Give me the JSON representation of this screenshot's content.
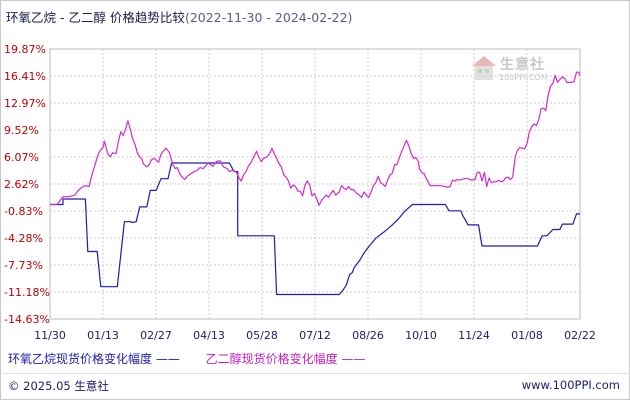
{
  "title": "环氧乙烷 - 乙二醇 价格趋势比较",
  "date_range": "(2022-11-30 - 2024-02-22)",
  "legend": {
    "series1_label": "环氧乙烷现货价格变化幅度",
    "series2_label": "乙二醇现货价格变化幅度"
  },
  "footer": {
    "copyright": "© 2025.05 生意社",
    "url": "www.100PPI.com"
  },
  "watermark": {
    "text": "生意社",
    "url": "100PPI.COM"
  },
  "colors": {
    "series1": "#1c1cb0",
    "series2": "#d22ad2",
    "grid": "#cfcfcf"
  },
  "chart_data": {
    "type": "line",
    "ylim": [
      -14.63,
      19.87
    ],
    "ytick_labels": [
      "19.87%",
      "16.41%",
      "12.97%",
      "9.52%",
      "6.07%",
      "2.62%",
      "-0.83%",
      "-4.28%",
      "-7.73%",
      "-11.18%",
      "-14.63%"
    ],
    "x_tick_labels": [
      "11/30",
      "01/13",
      "02/27",
      "04/13",
      "05/28",
      "07/12",
      "08/26",
      "10/10",
      "11/24",
      "01/08",
      "02/22"
    ],
    "x_range_days": [
      0,
      449
    ],
    "grid": true,
    "series": [
      {
        "name": "环氧乙烷现货价格变化幅度",
        "points": [
          [
            0,
            0
          ],
          [
            5,
            0
          ],
          [
            11,
            0
          ],
          [
            11,
            0.7
          ],
          [
            20,
            0.7
          ],
          [
            30,
            0.7
          ],
          [
            32,
            -6
          ],
          [
            40,
            -6
          ],
          [
            43,
            -10.5
          ],
          [
            57,
            -10.5
          ],
          [
            63,
            -2.2
          ],
          [
            68,
            -2.2
          ],
          [
            70,
            -2.3
          ],
          [
            73,
            -2.2
          ],
          [
            76,
            -0.3
          ],
          [
            82,
            -0.3
          ],
          [
            85,
            1.8
          ],
          [
            90,
            1.8
          ],
          [
            94,
            3.3
          ],
          [
            100,
            3.3
          ],
          [
            103,
            5.3
          ],
          [
            135,
            5.3
          ],
          [
            140,
            5.3
          ],
          [
            152,
            5.3
          ],
          [
            156,
            4.2
          ],
          [
            159,
            4.2
          ],
          [
            159,
            -4
          ],
          [
            185,
            -4
          ],
          [
            190,
            -4
          ],
          [
            192,
            -11.5
          ],
          [
            225,
            -11.5
          ],
          [
            245,
            -11.5
          ],
          [
            248,
            -11
          ],
          [
            251,
            -10.3
          ],
          [
            254,
            -8.9
          ],
          [
            256,
            -8.7
          ],
          [
            258,
            -8
          ],
          [
            262,
            -7.2
          ],
          [
            266,
            -6.2
          ],
          [
            271,
            -5.2
          ],
          [
            276,
            -4.3
          ],
          [
            283,
            -3.5
          ],
          [
            290,
            -2.6
          ],
          [
            296,
            -1.7
          ],
          [
            301,
            -0.8
          ],
          [
            307,
            0
          ],
          [
            327,
            0
          ],
          [
            335,
            0
          ],
          [
            338,
            -0.8
          ],
          [
            348,
            -0.8
          ],
          [
            350,
            -1.5
          ],
          [
            352,
            -2
          ],
          [
            354,
            -2.6
          ],
          [
            356,
            -2.6
          ],
          [
            363,
            -2.6
          ],
          [
            366,
            -5.3
          ],
          [
            378,
            -5.3
          ],
          [
            410,
            -5.3
          ],
          [
            413,
            -5.3
          ],
          [
            417,
            -4
          ],
          [
            421,
            -4
          ],
          [
            426,
            -3.2
          ],
          [
            432,
            -3.2
          ],
          [
            434,
            -2.5
          ],
          [
            437,
            -2.5
          ],
          [
            443,
            -2.5
          ],
          [
            446,
            -1.2
          ],
          [
            449,
            -1.2
          ]
        ]
      },
      {
        "name": "乙二醇现货价格变化幅度",
        "points": [
          [
            0,
            0
          ],
          [
            6,
            0
          ],
          [
            8,
            0.4
          ],
          [
            11,
            1
          ],
          [
            16,
            1
          ],
          [
            21,
            1.2
          ],
          [
            24,
            1.8
          ],
          [
            27,
            2.2
          ],
          [
            30,
            2.4
          ],
          [
            33,
            2.3
          ],
          [
            35,
            3.5
          ],
          [
            37,
            4.5
          ],
          [
            39,
            5.5
          ],
          [
            41,
            6.5
          ],
          [
            43,
            7
          ],
          [
            45,
            7.3
          ],
          [
            46,
            8.1
          ],
          [
            49,
            6.5
          ],
          [
            51,
            6.1
          ],
          [
            53,
            6.6
          ],
          [
            56,
            6.5
          ],
          [
            58,
            8.1
          ],
          [
            60,
            9.3
          ],
          [
            62,
            8.8
          ],
          [
            64,
            9.6
          ],
          [
            66,
            10.7
          ],
          [
            68,
            9.6
          ],
          [
            70,
            8.4
          ],
          [
            72,
            7.7
          ],
          [
            74,
            6.6
          ],
          [
            76,
            6.1
          ],
          [
            78,
            5.8
          ],
          [
            79,
            5.2
          ],
          [
            82,
            4.8
          ],
          [
            84,
            5.1
          ],
          [
            86,
            5.7
          ],
          [
            88,
            5.9
          ],
          [
            92,
            5.4
          ],
          [
            94,
            6.4
          ],
          [
            96,
            6.8
          ],
          [
            98,
            7.2
          ],
          [
            101,
            6.7
          ],
          [
            104,
            5.1
          ],
          [
            106,
            4.6
          ],
          [
            108,
            4.7
          ],
          [
            110,
            3.9
          ],
          [
            112,
            3.5
          ],
          [
            114,
            3.2
          ],
          [
            117,
            3.7
          ],
          [
            119,
            3.9
          ],
          [
            122,
            4.2
          ],
          [
            124,
            4.3
          ],
          [
            127,
            4.7
          ],
          [
            130,
            4.6
          ],
          [
            134,
            5.3
          ],
          [
            138,
            4.9
          ],
          [
            141,
            5.5
          ],
          [
            144,
            5.6
          ],
          [
            147,
            4.8
          ],
          [
            150,
            4.6
          ],
          [
            152,
            4.2
          ],
          [
            155,
            4.4
          ],
          [
            158,
            4.1
          ],
          [
            160,
            3.4
          ],
          [
            162,
            3
          ],
          [
            164,
            3.8
          ],
          [
            166,
            4.2
          ],
          [
            168,
            4.9
          ],
          [
            170,
            5.3
          ],
          [
            173,
            6.2
          ],
          [
            175,
            6.8
          ],
          [
            177,
            6
          ],
          [
            179,
            5.5
          ],
          [
            181,
            5.9
          ],
          [
            184,
            6.1
          ],
          [
            186,
            6.5
          ],
          [
            188,
            7.2
          ],
          [
            190,
            6.5
          ],
          [
            192,
            5.9
          ],
          [
            194,
            5.2
          ],
          [
            196,
            4.8
          ],
          [
            198,
            3.8
          ],
          [
            200,
            3.5
          ],
          [
            202,
            3
          ],
          [
            204,
            2.1
          ],
          [
            206,
            2.5
          ],
          [
            208,
            2.3
          ],
          [
            210,
            1.7
          ],
          [
            212,
            1.7
          ],
          [
            214,
            1.1
          ],
          [
            216,
            2.5
          ],
          [
            218,
            3
          ],
          [
            220,
            2.5
          ],
          [
            222,
            1.1
          ],
          [
            224,
            1.4
          ],
          [
            226,
            0.7
          ],
          [
            228,
            -0.1
          ],
          [
            230,
            0.5
          ],
          [
            232,
            0.9
          ],
          [
            234,
            1.2
          ],
          [
            236,
            0.9
          ],
          [
            238,
            1.4
          ],
          [
            240,
            1.8
          ],
          [
            242,
            1.2
          ],
          [
            245,
            1.6
          ],
          [
            247,
            2.4
          ],
          [
            249,
            2.1
          ],
          [
            251,
            1.9
          ],
          [
            253,
            2.3
          ],
          [
            255,
            1.9
          ],
          [
            257,
            1.9
          ],
          [
            260,
            1.4
          ],
          [
            262,
            1.2
          ],
          [
            264,
            0.9
          ],
          [
            266,
            1.6
          ],
          [
            268,
            1.2
          ],
          [
            270,
            0.9
          ],
          [
            272,
            1.6
          ],
          [
            274,
            2.4
          ],
          [
            276,
            2.8
          ],
          [
            278,
            3.6
          ],
          [
            280,
            2.8
          ],
          [
            282,
            2.6
          ],
          [
            284,
            2.3
          ],
          [
            286,
            3.1
          ],
          [
            288,
            3.8
          ],
          [
            290,
            4
          ],
          [
            292,
            5.1
          ],
          [
            294,
            5.1
          ],
          [
            296,
            6
          ],
          [
            298,
            6.8
          ],
          [
            300,
            7.5
          ],
          [
            302,
            8.2
          ],
          [
            304,
            7.5
          ],
          [
            306,
            6.5
          ],
          [
            308,
            5.9
          ],
          [
            310,
            6
          ],
          [
            312,
            5.5
          ],
          [
            313,
            4.5
          ],
          [
            315,
            4.1
          ],
          [
            317,
            3.9
          ],
          [
            319,
            3.3
          ],
          [
            322,
            2.4
          ],
          [
            324,
            2.4
          ],
          [
            327,
            2.4
          ],
          [
            331,
            2.4
          ],
          [
            335,
            2.3
          ],
          [
            337,
            2.2
          ],
          [
            339,
            2.3
          ],
          [
            341,
            3.1
          ],
          [
            343,
            3
          ],
          [
            345,
            3.2
          ],
          [
            347,
            3.1
          ],
          [
            351,
            3.3
          ],
          [
            354,
            3.3
          ],
          [
            357,
            3.1
          ],
          [
            360,
            3.2
          ],
          [
            362,
            4.1
          ],
          [
            364,
            4.1
          ],
          [
            366,
            3
          ],
          [
            368,
            4.1
          ],
          [
            370,
            2.3
          ],
          [
            372,
            3.4
          ],
          [
            374,
            2.8
          ],
          [
            376,
            2.9
          ],
          [
            378,
            2.9
          ],
          [
            380,
            3.1
          ],
          [
            382,
            2.9
          ],
          [
            384,
            3
          ],
          [
            386,
            3.4
          ],
          [
            388,
            3.5
          ],
          [
            390,
            3.2
          ],
          [
            392,
            3.5
          ],
          [
            394,
            6
          ],
          [
            396,
            6.9
          ],
          [
            398,
            7.3
          ],
          [
            400,
            7.2
          ],
          [
            402,
            7.1
          ],
          [
            404,
            7.7
          ],
          [
            406,
            9.2
          ],
          [
            408,
            9.9
          ],
          [
            410,
            10.3
          ],
          [
            412,
            10.1
          ],
          [
            414,
            10.8
          ],
          [
            416,
            12.2
          ],
          [
            418,
            12.3
          ],
          [
            420,
            12
          ],
          [
            422,
            13.9
          ],
          [
            424,
            15.1
          ],
          [
            426,
            15.5
          ],
          [
            428,
            16.5
          ],
          [
            430,
            15.6
          ],
          [
            432,
            16
          ],
          [
            434,
            16.3
          ],
          [
            436,
            16.1
          ],
          [
            438,
            15.6
          ],
          [
            440,
            15.6
          ],
          [
            442,
            15.6
          ],
          [
            444,
            15.7
          ],
          [
            446,
            16.9
          ],
          [
            448,
            16.9
          ],
          [
            449,
            16.5
          ]
        ]
      }
    ]
  }
}
